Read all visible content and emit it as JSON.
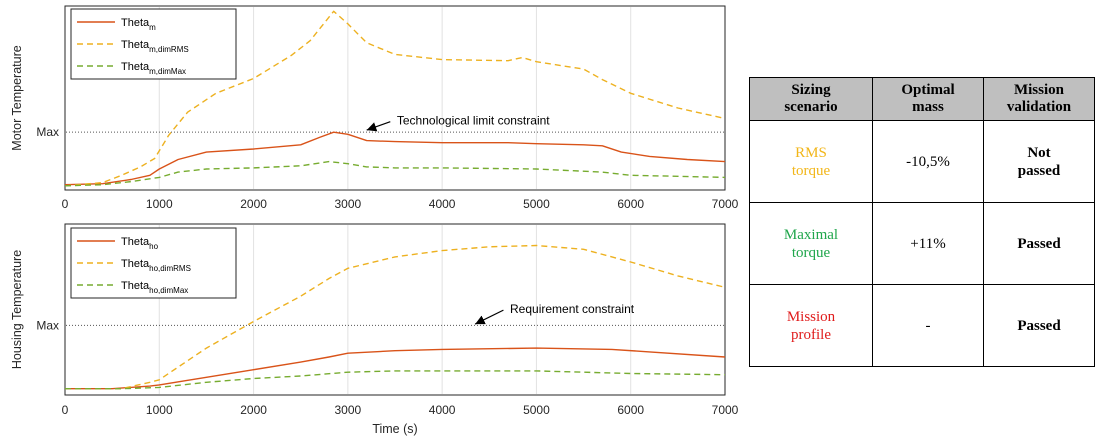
{
  "colors": {
    "theta": "#d95319",
    "dimRMS": "#edb120",
    "dimMax": "#77ac30",
    "rms_text": "#f2b619",
    "max_text": "#1fa64b",
    "mission_text": "#e01c1c"
  },
  "chart_data": [
    {
      "type": "line",
      "xlim": [
        0,
        7000
      ],
      "xticks": [
        "0",
        "1000",
        "2000",
        "3000",
        "4000",
        "5000",
        "6000",
        "7000"
      ],
      "xlabel": "",
      "ylabel": "Motor Temperature",
      "ytick_label": "Max",
      "grid": true,
      "legend_position": "top-left",
      "max_level": 0.55,
      "annotation": {
        "text": "Technological limit constraint",
        "arrow_target": [
          3200,
          0.57
        ],
        "arrow_tail": [
          3450,
          0.65
        ],
        "text_x": 3520,
        "text_y": 0.66
      },
      "series": [
        {
          "name": "Theta",
          "sub": "m",
          "style": "solid",
          "color_key": "theta",
          "points": [
            [
              0,
              0.05
            ],
            [
              400,
              0.06
            ],
            [
              700,
              0.1
            ],
            [
              900,
              0.14
            ],
            [
              1000,
              0.2
            ],
            [
              1200,
              0.29
            ],
            [
              1500,
              0.36
            ],
            [
              2000,
              0.39
            ],
            [
              2500,
              0.43
            ],
            [
              2700,
              0.5
            ],
            [
              2850,
              0.55
            ],
            [
              3000,
              0.53
            ],
            [
              3200,
              0.47
            ],
            [
              3500,
              0.46
            ],
            [
              4000,
              0.45
            ],
            [
              4700,
              0.45
            ],
            [
              5000,
              0.44
            ],
            [
              5500,
              0.43
            ],
            [
              5700,
              0.42
            ],
            [
              5900,
              0.36
            ],
            [
              6200,
              0.32
            ],
            [
              6600,
              0.29
            ],
            [
              7000,
              0.27
            ]
          ]
        },
        {
          "name": "Theta",
          "sub": "m,dimRMS",
          "style": "dashed",
          "color_key": "dimRMS",
          "points": [
            [
              0,
              0.04
            ],
            [
              400,
              0.07
            ],
            [
              600,
              0.14
            ],
            [
              800,
              0.22
            ],
            [
              950,
              0.3
            ],
            [
              1100,
              0.52
            ],
            [
              1300,
              0.74
            ],
            [
              1600,
              0.92
            ],
            [
              2000,
              1.06
            ],
            [
              2400,
              1.28
            ],
            [
              2600,
              1.42
            ],
            [
              2850,
              1.7
            ],
            [
              3000,
              1.58
            ],
            [
              3200,
              1.4
            ],
            [
              3500,
              1.29
            ],
            [
              4000,
              1.24
            ],
            [
              4700,
              1.23
            ],
            [
              4850,
              1.26
            ],
            [
              5000,
              1.22
            ],
            [
              5500,
              1.15
            ],
            [
              5700,
              1.05
            ],
            [
              6000,
              0.92
            ],
            [
              6500,
              0.78
            ],
            [
              7000,
              0.68
            ]
          ]
        },
        {
          "name": "Theta",
          "sub": "m,dimMax",
          "style": "dashed",
          "color_key": "dimMax",
          "points": [
            [
              0,
              0.04
            ],
            [
              400,
              0.05
            ],
            [
              700,
              0.08
            ],
            [
              1000,
              0.12
            ],
            [
              1200,
              0.17
            ],
            [
              1500,
              0.2
            ],
            [
              2000,
              0.21
            ],
            [
              2500,
              0.23
            ],
            [
              2800,
              0.27
            ],
            [
              3000,
              0.25
            ],
            [
              3200,
              0.22
            ],
            [
              3500,
              0.21
            ],
            [
              4000,
              0.21
            ],
            [
              5000,
              0.2
            ],
            [
              5700,
              0.17
            ],
            [
              6000,
              0.14
            ],
            [
              6500,
              0.13
            ],
            [
              7000,
              0.12
            ]
          ]
        }
      ]
    },
    {
      "type": "line",
      "xlim": [
        0,
        7000
      ],
      "xticks": [
        "0",
        "1000",
        "2000",
        "3000",
        "4000",
        "5000",
        "6000",
        "7000"
      ],
      "xlabel": "Time (s)",
      "ylabel": "Housing Temperature",
      "ytick_label": "Max",
      "grid": true,
      "legend_position": "top-left",
      "max_level": 0.55,
      "annotation": {
        "text": "Requirement constraint",
        "arrow_target": [
          4350,
          0.56
        ],
        "arrow_tail": [
          4650,
          0.67
        ],
        "text_x": 4720,
        "text_y": 0.68
      },
      "series": [
        {
          "name": "Theta",
          "sub": "ho",
          "style": "solid",
          "color_key": "theta",
          "points": [
            [
              0,
              0.05
            ],
            [
              500,
              0.05
            ],
            [
              900,
              0.07
            ],
            [
              1000,
              0.08
            ],
            [
              1500,
              0.14
            ],
            [
              2000,
              0.2
            ],
            [
              2500,
              0.26
            ],
            [
              2800,
              0.3
            ],
            [
              3000,
              0.33
            ],
            [
              3500,
              0.35
            ],
            [
              4000,
              0.36
            ],
            [
              5000,
              0.37
            ],
            [
              5800,
              0.36
            ],
            [
              6200,
              0.34
            ],
            [
              7000,
              0.3
            ]
          ]
        },
        {
          "name": "Theta",
          "sub": "ho,dimRMS",
          "style": "dashed",
          "color_key": "dimRMS",
          "points": [
            [
              0,
              0.05
            ],
            [
              600,
              0.05
            ],
            [
              900,
              0.1
            ],
            [
              1000,
              0.12
            ],
            [
              1200,
              0.22
            ],
            [
              1500,
              0.37
            ],
            [
              2000,
              0.58
            ],
            [
              2500,
              0.78
            ],
            [
              2800,
              0.92
            ],
            [
              3000,
              1.0
            ],
            [
              3500,
              1.09
            ],
            [
              4000,
              1.14
            ],
            [
              4500,
              1.17
            ],
            [
              5000,
              1.18
            ],
            [
              5500,
              1.15
            ],
            [
              6000,
              1.05
            ],
            [
              6500,
              0.94
            ],
            [
              7000,
              0.85
            ]
          ]
        },
        {
          "name": "Theta",
          "sub": "ho,dimMax",
          "style": "dashed",
          "color_key": "dimMax",
          "points": [
            [
              0,
              0.05
            ],
            [
              600,
              0.05
            ],
            [
              1000,
              0.06
            ],
            [
              1500,
              0.1
            ],
            [
              2000,
              0.13
            ],
            [
              2500,
              0.15
            ],
            [
              3000,
              0.18
            ],
            [
              3500,
              0.19
            ],
            [
              4000,
              0.19
            ],
            [
              5000,
              0.19
            ],
            [
              6000,
              0.17
            ],
            [
              7000,
              0.16
            ]
          ]
        }
      ]
    }
  ],
  "table": {
    "headers": [
      {
        "line1": "Sizing",
        "line2": "scenario"
      },
      {
        "line1": "Optimal",
        "line2": "mass"
      },
      {
        "line1": "Mission",
        "line2": "validation"
      }
    ],
    "rows": [
      {
        "scenario_line1": "RMS",
        "scenario_line2": "torque",
        "color_key": "rms_text",
        "mass": "-10,5%",
        "validation_line1": "Not",
        "validation_line2": "passed"
      },
      {
        "scenario_line1": "Maximal",
        "scenario_line2": "torque",
        "color_key": "max_text",
        "mass": "+11%",
        "validation_line1": "Passed",
        "validation_line2": ""
      },
      {
        "scenario_line1": "Mission",
        "scenario_line2": "profile",
        "color_key": "mission_text",
        "mass": "-",
        "validation_line1": "Passed",
        "validation_line2": ""
      }
    ]
  }
}
